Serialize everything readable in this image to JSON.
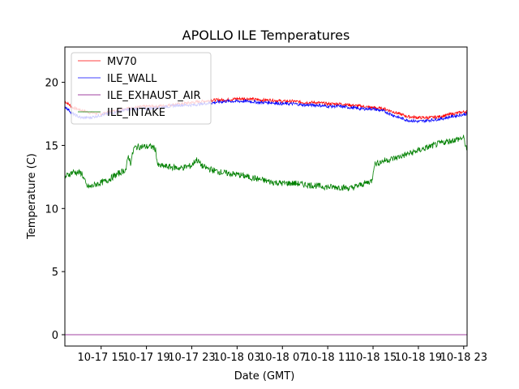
{
  "chart_data": {
    "type": "line",
    "title": "APOLLO ILE Temperatures",
    "xlabel": "Date (GMT)",
    "ylabel": "Temperature (C)",
    "xlim": [
      11.8,
      47.3
    ],
    "ylim": [
      -0.9,
      22.8
    ],
    "x_unit": "hours since 2017-10-17 00:00 GMT",
    "xticks": [
      {
        "value": 15,
        "label": "10-17 15"
      },
      {
        "value": 19,
        "label": "10-17 19"
      },
      {
        "value": 23,
        "label": "10-17 23"
      },
      {
        "value": 27,
        "label": "10-18 03"
      },
      {
        "value": 31,
        "label": "10-18 07"
      },
      {
        "value": 35,
        "label": "10-18 11"
      },
      {
        "value": 39,
        "label": "10-18 15"
      },
      {
        "value": 43,
        "label": "10-18 19"
      },
      {
        "value": 47,
        "label": "10-18 23"
      }
    ],
    "yticks": [
      {
        "value": 0,
        "label": "0"
      },
      {
        "value": 5,
        "label": "5"
      },
      {
        "value": 10,
        "label": "10"
      },
      {
        "value": 15,
        "label": "15"
      },
      {
        "value": 20,
        "label": "20"
      }
    ],
    "grid": false,
    "legend_position": "upper-left",
    "series": [
      {
        "name": "MV70",
        "color": "#ff0000",
        "x": [
          11.8,
          12.5,
          13.2,
          14.0,
          15.0,
          16.0,
          17.0,
          18.0,
          19.0,
          20.0,
          21.0,
          22.0,
          23.0,
          24.0,
          25.0,
          26.0,
          27.0,
          28.0,
          29.0,
          30.0,
          31.0,
          32.0,
          33.0,
          34.0,
          35.0,
          36.0,
          37.0,
          38.0,
          39.0,
          40.0,
          41.0,
          42.0,
          43.0,
          44.0,
          45.0,
          46.0,
          47.3
        ],
        "y": [
          18.5,
          18.0,
          17.8,
          17.6,
          17.5,
          17.7,
          17.9,
          18.0,
          18.1,
          18.1,
          18.2,
          18.3,
          18.4,
          18.5,
          18.6,
          18.6,
          18.7,
          18.7,
          18.6,
          18.6,
          18.5,
          18.5,
          18.4,
          18.4,
          18.3,
          18.3,
          18.2,
          18.1,
          18.0,
          17.9,
          17.6,
          17.3,
          17.2,
          17.2,
          17.3,
          17.5,
          17.7
        ]
      },
      {
        "name": "ILE_WALL",
        "color": "#0000ff",
        "x": [
          11.8,
          12.5,
          13.2,
          14.0,
          15.0,
          16.0,
          17.0,
          18.0,
          19.0,
          20.0,
          21.0,
          22.0,
          23.0,
          24.0,
          25.0,
          26.0,
          27.0,
          28.0,
          29.0,
          30.0,
          31.0,
          32.0,
          33.0,
          34.0,
          35.0,
          36.0,
          37.0,
          38.0,
          39.0,
          40.0,
          41.0,
          42.0,
          43.0,
          44.0,
          45.0,
          46.0,
          47.3
        ],
        "y": [
          18.1,
          17.5,
          17.2,
          17.2,
          17.4,
          17.6,
          17.8,
          17.9,
          17.9,
          18.0,
          18.1,
          18.2,
          18.2,
          18.3,
          18.4,
          18.5,
          18.5,
          18.5,
          18.4,
          18.4,
          18.3,
          18.3,
          18.2,
          18.2,
          18.1,
          18.1,
          18.0,
          17.9,
          17.9,
          17.7,
          17.3,
          17.0,
          16.9,
          17.0,
          17.1,
          17.3,
          17.5
        ]
      },
      {
        "name": "ILE_EXHAUST_AIR",
        "color": "#800080",
        "x": [
          11.8,
          47.3
        ],
        "y": [
          0.0,
          0.0
        ]
      },
      {
        "name": "ILE_INTAKE",
        "color": "#008000",
        "x": [
          11.8,
          12.5,
          13.3,
          13.7,
          14.0,
          14.5,
          15.5,
          16.2,
          16.8,
          17.2,
          17.4,
          17.6,
          17.9,
          18.3,
          18.8,
          19.5,
          19.8,
          20.0,
          21.0,
          22.0,
          23.0,
          23.4,
          24.0,
          25.0,
          26.0,
          27.0,
          28.0,
          29.0,
          30.0,
          31.0,
          32.0,
          33.0,
          34.0,
          35.0,
          36.0,
          37.0,
          38.0,
          38.9,
          39.1,
          40.0,
          41.0,
          42.0,
          43.0,
          44.0,
          45.0,
          46.0,
          47.0,
          47.3
        ],
        "y": [
          12.5,
          12.9,
          12.8,
          11.8,
          11.7,
          11.9,
          12.2,
          12.6,
          12.9,
          13.1,
          14.2,
          13.6,
          14.8,
          14.9,
          14.9,
          14.9,
          14.7,
          13.4,
          13.3,
          13.2,
          13.4,
          13.9,
          13.3,
          13.0,
          12.8,
          12.7,
          12.5,
          12.3,
          12.1,
          12.0,
          12.0,
          11.9,
          11.8,
          11.7,
          11.7,
          11.6,
          11.9,
          12.2,
          13.5,
          13.8,
          14.0,
          14.3,
          14.6,
          14.9,
          15.2,
          15.4,
          15.6,
          14.6
        ]
      }
    ]
  }
}
